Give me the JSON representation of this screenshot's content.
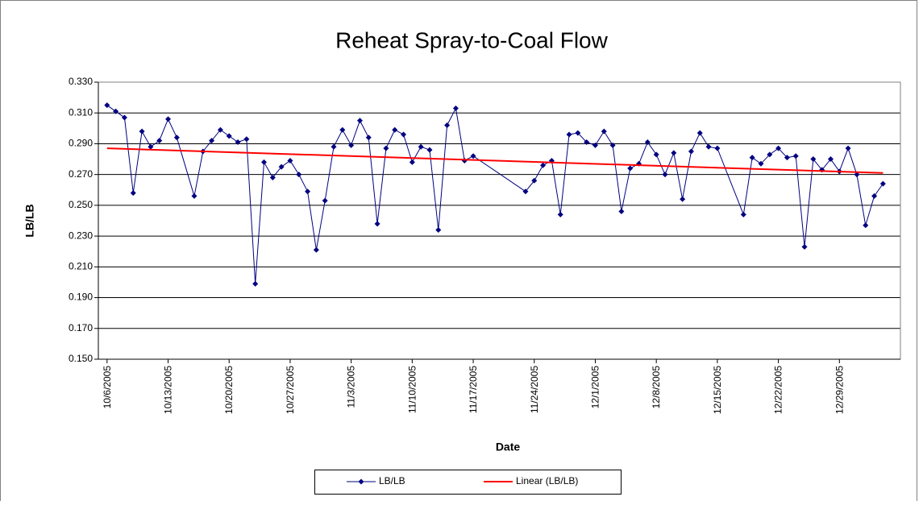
{
  "chart_data": {
    "type": "line",
    "title": "Reheat Spray-to-Coal Flow",
    "x_label": "Date",
    "y_label": "LB/LB",
    "xlim": [
      "10/5/2005",
      "1/5/2006"
    ],
    "xticks": [
      "10/6/2005",
      "10/13/2005",
      "10/20/2005",
      "10/27/2005",
      "11/3/2005",
      "11/10/2005",
      "11/17/2005",
      "11/24/2005",
      "12/1/2005",
      "12/8/2005",
      "12/15/2005",
      "12/22/2005",
      "12/29/2005"
    ],
    "ylim": [
      0.15,
      0.33
    ],
    "yticks": [
      {
        "value": 0.15,
        "label": "0.150"
      },
      {
        "value": 0.17,
        "label": "0.170"
      },
      {
        "value": 0.19,
        "label": "0.190"
      },
      {
        "value": 0.21,
        "label": "0.210"
      },
      {
        "value": 0.23,
        "label": "0.230"
      },
      {
        "value": 0.25,
        "label": "0.250"
      },
      {
        "value": 0.27,
        "label": "0.270"
      },
      {
        "value": 0.29,
        "label": "0.290"
      },
      {
        "value": 0.31,
        "label": "0.310"
      },
      {
        "value": 0.33,
        "label": "0.330"
      }
    ],
    "grid": true,
    "legend": "bottom",
    "series": [
      {
        "name": "LB/LB",
        "color": "#000080",
        "marker": "diamond",
        "x": [
          "10/6/2005",
          "10/7/2005",
          "10/8/2005",
          "10/9/2005",
          "10/10/2005",
          "10/11/2005",
          "10/12/2005",
          "10/13/2005",
          "10/14/2005",
          "10/16/2005",
          "10/17/2005",
          "10/18/2005",
          "10/19/2005",
          "10/20/2005",
          "10/21/2005",
          "10/22/2005",
          "10/23/2005",
          "10/24/2005",
          "10/25/2005",
          "10/26/2005",
          "10/27/2005",
          "10/28/2005",
          "10/29/2005",
          "10/30/2005",
          "10/31/2005",
          "11/1/2005",
          "11/2/2005",
          "11/3/2005",
          "11/4/2005",
          "11/5/2005",
          "11/6/2005",
          "11/7/2005",
          "11/8/2005",
          "11/9/2005",
          "11/10/2005",
          "11/11/2005",
          "11/12/2005",
          "11/13/2005",
          "11/14/2005",
          "11/15/2005",
          "11/16/2005",
          "11/17/2005",
          "11/23/2005",
          "11/24/2005",
          "11/25/2005",
          "11/26/2005",
          "11/27/2005",
          "11/28/2005",
          "11/29/2005",
          "11/30/2005",
          "12/1/2005",
          "12/2/2005",
          "12/3/2005",
          "12/4/2005",
          "12/5/2005",
          "12/6/2005",
          "12/7/2005",
          "12/8/2005",
          "12/9/2005",
          "12/10/2005",
          "12/11/2005",
          "12/12/2005",
          "12/13/2005",
          "12/14/2005",
          "12/15/2005",
          "12/18/2005",
          "12/19/2005",
          "12/20/2005",
          "12/21/2005",
          "12/22/2005",
          "12/23/2005",
          "12/24/2005",
          "12/25/2005",
          "12/26/2005",
          "12/27/2005",
          "12/28/2005",
          "12/29/2005",
          "12/30/2005",
          "12/31/2005",
          "1/1/2006",
          "1/2/2006",
          "1/3/2006"
        ],
        "values": [
          0.315,
          0.311,
          0.307,
          0.258,
          0.298,
          0.288,
          0.292,
          0.306,
          0.294,
          0.256,
          0.285,
          0.292,
          0.299,
          0.295,
          0.291,
          0.293,
          0.199,
          0.278,
          0.268,
          0.275,
          0.279,
          0.27,
          0.259,
          0.221,
          0.253,
          0.288,
          0.299,
          0.289,
          0.305,
          0.294,
          0.238,
          0.287,
          0.299,
          0.296,
          0.278,
          0.288,
          0.286,
          0.234,
          0.302,
          0.313,
          0.279,
          0.282,
          0.259,
          0.266,
          0.276,
          0.279,
          0.244,
          0.296,
          0.297,
          0.291,
          0.289,
          0.298,
          0.289,
          0.246,
          0.274,
          0.277,
          0.291,
          0.283,
          0.27,
          0.284,
          0.254,
          0.285,
          0.297,
          0.288,
          0.287,
          0.244,
          0.281,
          0.277,
          0.283,
          0.287,
          0.281,
          0.282,
          0.223,
          0.28,
          0.273,
          0.28,
          0.272,
          0.287,
          0.27,
          0.237,
          0.256,
          0.264
        ]
      },
      {
        "name": "Linear (LB/LB)",
        "color": "#ff0000",
        "marker": "none",
        "x": [
          "10/6/2005",
          "1/3/2006"
        ],
        "values": [
          0.287,
          0.271
        ]
      }
    ]
  }
}
